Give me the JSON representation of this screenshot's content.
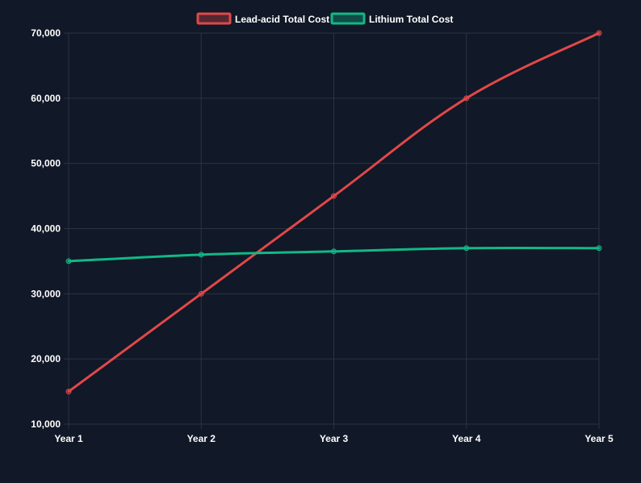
{
  "colors": {
    "background": "#111827",
    "grid": "#2b3444",
    "text": "#ffffff",
    "lead_acid": "#e04848",
    "lithium": "#12b886"
  },
  "chart_data": {
    "type": "line",
    "categories": [
      "Year 1",
      "Year 2",
      "Year 3",
      "Year 4",
      "Year 5"
    ],
    "series": [
      {
        "name": "Lead-acid Total Cost",
        "color": "#e04848",
        "values": [
          15000,
          30000,
          45000,
          60000,
          70000
        ]
      },
      {
        "name": "Lithium Total Cost",
        "color": "#12b886",
        "values": [
          35000,
          36000,
          36500,
          37000,
          37000
        ]
      }
    ],
    "ylim": [
      10000,
      70000
    ],
    "yticks": [
      "10,000",
      "20,000",
      "30,000",
      "40,000",
      "50,000",
      "60,000",
      "70,000"
    ],
    "grid": true,
    "legend_position": "top-center"
  }
}
